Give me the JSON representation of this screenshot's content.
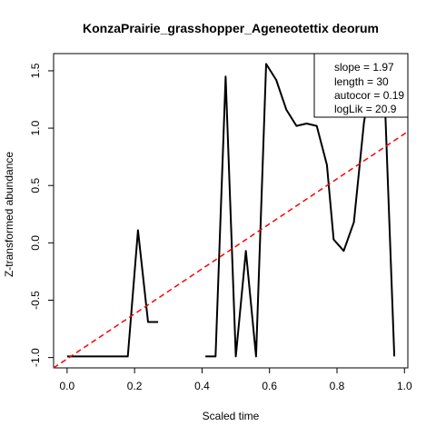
{
  "chart_data": {
    "type": "line",
    "title": "KonzaPrairie_grasshopper_Ageneotettix deorum",
    "xlabel": "Scaled time",
    "ylabel": "Z-transformed abundance",
    "xlim": [
      -0.04,
      1.01
    ],
    "ylim": [
      -1.09,
      1.65
    ],
    "x_ticks": [
      0.0,
      0.2,
      0.4,
      0.6,
      0.8,
      1.0
    ],
    "x_tick_labels": [
      "0.0",
      "0.2",
      "0.4",
      "0.6",
      "0.8",
      "1.0"
    ],
    "y_ticks": [
      -1.0,
      -0.5,
      0.0,
      0.5,
      1.0,
      1.5
    ],
    "y_tick_labels": [
      "-1.0",
      "-0.5",
      "0.0",
      "0.5",
      "1.0",
      "1.5"
    ],
    "grid": false,
    "legend_position": "top-right",
    "series": [
      {
        "color": "#000000",
        "segments": [
          [
            [
              0.0,
              -0.99
            ],
            [
              0.03,
              -0.99
            ],
            [
              0.06,
              -0.99
            ],
            [
              0.09,
              -0.99
            ],
            [
              0.12,
              -0.99
            ],
            [
              0.15,
              -0.99
            ],
            [
              0.18,
              -0.99
            ],
            [
              0.21,
              0.11
            ],
            [
              0.24,
              -0.69
            ],
            [
              0.27,
              -0.69
            ]
          ],
          [
            [
              0.41,
              -0.99
            ],
            [
              0.44,
              -0.99
            ],
            [
              0.47,
              1.45
            ],
            [
              0.5,
              -0.99
            ],
            [
              0.53,
              -0.07
            ],
            [
              0.56,
              -0.99
            ],
            [
              0.59,
              1.56
            ],
            [
              0.62,
              1.42
            ],
            [
              0.65,
              1.16
            ],
            [
              0.68,
              1.02
            ],
            [
              0.71,
              1.04
            ],
            [
              0.74,
              1.02
            ],
            [
              0.77,
              0.68
            ],
            [
              0.79,
              0.03
            ],
            [
              0.82,
              -0.07
            ],
            [
              0.85,
              0.18
            ],
            [
              0.88,
              1.05
            ],
            [
              0.91,
              1.57
            ],
            [
              0.94,
              1.39
            ],
            [
              0.97,
              -0.99
            ]
          ]
        ]
      },
      {
        "color": "#ff0000",
        "dashed": true,
        "points": [
          [
            -0.04,
            -1.09
          ],
          [
            1.01,
            0.97
          ]
        ]
      }
    ],
    "annotations": [
      "slope = 1.97",
      "length = 30",
      "autocor = 0.19",
      "logLik = 20.9"
    ]
  }
}
